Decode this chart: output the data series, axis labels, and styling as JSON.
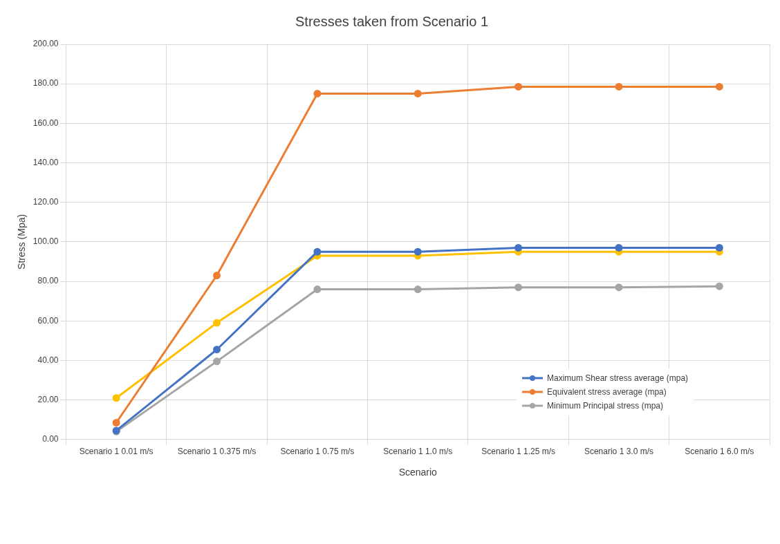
{
  "chart_data": {
    "type": "line",
    "title": "Stresses taken from Scenario 1",
    "xlabel": "Scenario",
    "ylabel": "Stress (Mpa)",
    "categories": [
      "Scenario 1 0.01 m/s",
      "Scenario 1 0.375 m/s",
      "Scenario 1 0.75 m/s",
      "Scenario 1 1.0 m/s",
      "Scenario 1 1.25 m/s",
      "Scenario 1 3.0 m/s",
      "Scenario 1 6.0 m/s"
    ],
    "series": [
      {
        "name": "Maximum Shear stress average (mpa)",
        "color": "#4472c4",
        "values": [
          4.5,
          45.5,
          95,
          95,
          97,
          97,
          97
        ]
      },
      {
        "name": "Equivalent stress average (mpa)",
        "color": "#ed7d31",
        "values": [
          8.5,
          83,
          175,
          175,
          178.5,
          178.5,
          178.5
        ]
      },
      {
        "name": "Minimum Principal stress (mpa)",
        "color": "#a5a5a5",
        "values": [
          4,
          39.5,
          76,
          76,
          77,
          77,
          77.5
        ]
      },
      {
        "color": "#ffc000",
        "values": [
          21,
          59,
          93,
          93,
          95,
          95,
          95
        ]
      }
    ],
    "ylim": [
      0,
      200
    ],
    "yticks": [
      {
        "value": 0,
        "label": "0.00"
      },
      {
        "value": 20,
        "label": "20.00"
      },
      {
        "value": 40,
        "label": "40.00"
      },
      {
        "value": 60,
        "label": "60.00"
      },
      {
        "value": 80,
        "label": "80.00"
      },
      {
        "value": 100,
        "label": "100.00"
      },
      {
        "value": 120,
        "label": "120.00"
      },
      {
        "value": 140,
        "label": "140.00"
      },
      {
        "value": 160,
        "label": "160.00"
      },
      {
        "value": 180,
        "label": "180.00"
      },
      {
        "value": 200,
        "label": "200.00"
      }
    ],
    "grid": true,
    "legend": "bottom right",
    "marker": "circle",
    "line_style": "solid"
  }
}
